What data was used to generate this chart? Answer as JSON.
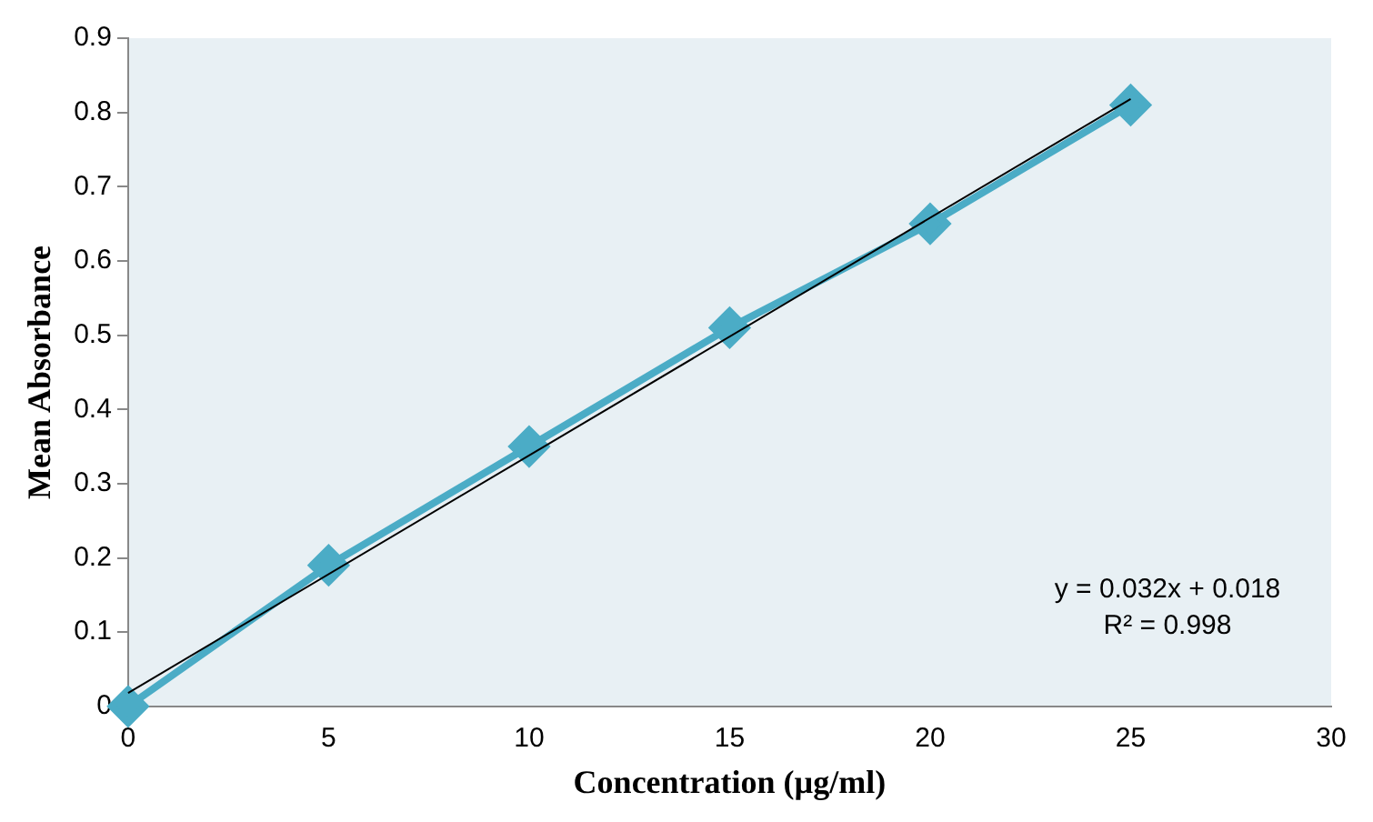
{
  "chart_data": {
    "type": "line",
    "xlabel": "Concentration (µg/ml)",
    "ylabel": "Mean Absorbance",
    "x": [
      0,
      5,
      10,
      15,
      20,
      25
    ],
    "series": [
      {
        "color": "#4bacc6",
        "values": [
          0,
          0.19,
          0.35,
          0.51,
          0.65,
          0.81
        ],
        "marker": "diamond"
      },
      {
        "type": "line",
        "color": "#000000",
        "x": [
          0,
          25
        ],
        "values": [
          0.018,
          0.818
        ],
        "marker": "none"
      }
    ],
    "xlim": [
      0,
      30
    ],
    "xticks": [
      0,
      5,
      10,
      15,
      20,
      25,
      30
    ],
    "ylim": [
      0,
      0.9
    ],
    "yticks": [
      0,
      0.1,
      0.2,
      0.3,
      0.4,
      0.5,
      0.6,
      0.7,
      0.8,
      0.9
    ],
    "grid": false,
    "legend": false,
    "annotations": [
      "y = 0.032x + 0.018",
      "R² = 0.998"
    ]
  }
}
